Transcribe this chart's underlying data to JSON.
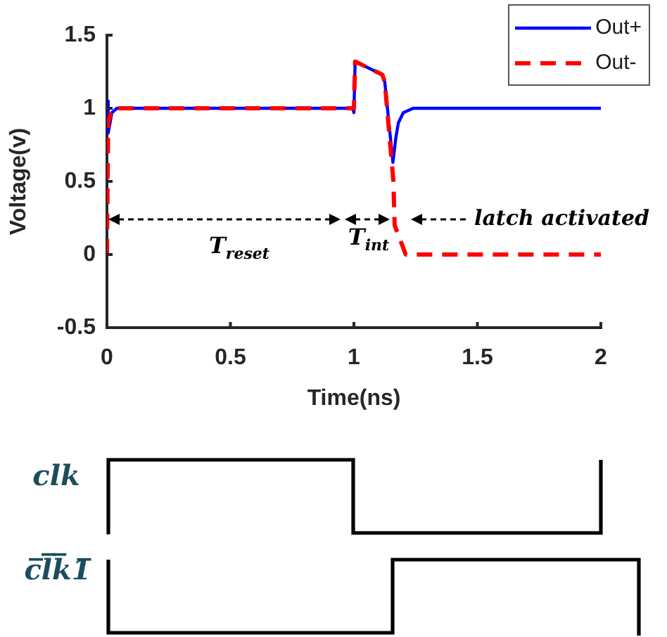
{
  "chart_data": {
    "type": "line",
    "xlabel": "Time(ns)",
    "ylabel": "Voltage(v)",
    "xlim": [
      0,
      2
    ],
    "xticks": [
      0,
      0.5,
      1,
      1.5,
      2
    ],
    "ylim": [
      -0.5,
      1.5
    ],
    "yticks": [
      -0.5,
      0,
      0.5,
      1,
      1.5
    ],
    "legend": "top right",
    "annotations": [
      "T$_{reset}$",
      "T$_{int}$",
      "latch activated",
      "clk",
      "c̅l̅k̅1̅"
    ],
    "series": [
      {
        "name": "Out+",
        "color": "#0000ff",
        "line_style": "solid",
        "x": [
          0,
          0.005,
          0.02,
          0.04,
          0.995,
          1.0,
          1.005,
          1.115,
          1.125,
          1.158,
          1.17,
          1.18,
          1.2,
          1.24,
          2
        ],
        "values": [
          1.05,
          0.83,
          0.97,
          1.0,
          1.0,
          0.97,
          1.32,
          1.23,
          1.18,
          0.63,
          0.8,
          0.9,
          0.97,
          1.0,
          1.0
        ]
      },
      {
        "name": "Out-",
        "color": "#ff0000",
        "line_style": "dashed",
        "x": [
          0,
          0.005,
          0.02,
          0.04,
          1.0,
          1.005,
          1.115,
          1.125,
          1.16,
          1.165,
          1.21,
          2
        ],
        "values": [
          0,
          0.9,
          0.99,
          1.0,
          1.0,
          1.32,
          1.23,
          1.18,
          0.5,
          0.2,
          0,
          0
        ]
      }
    ]
  }
}
